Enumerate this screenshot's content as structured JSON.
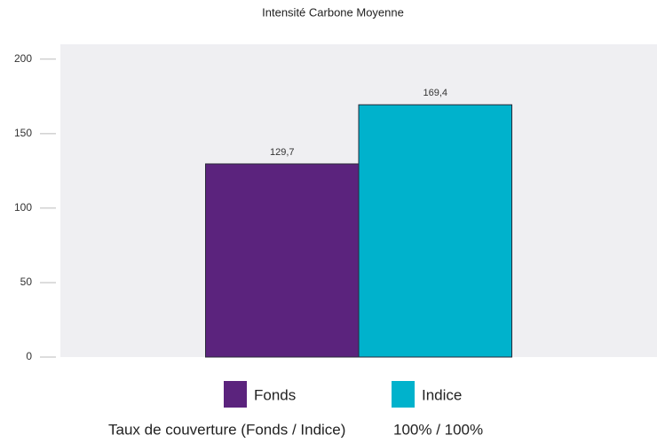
{
  "chart_data": {
    "type": "bar",
    "title": "Intensité Carbone Moyenne",
    "categories": [
      null
    ],
    "series": [
      {
        "name": "Fonds",
        "color": "#5b237d",
        "values": [
          129.7
        ],
        "value_labels": [
          "129,7"
        ]
      },
      {
        "name": "Indice",
        "color": "#00b2cc",
        "values": [
          169.4
        ],
        "value_labels": [
          "169,4"
        ]
      }
    ],
    "ylim": [
      0,
      210
    ],
    "yticks": [
      0,
      50,
      100,
      150,
      200
    ],
    "coverage_label": "Taux de couverture (Fonds / Indice)",
    "coverage_value": "100% / 100%"
  }
}
